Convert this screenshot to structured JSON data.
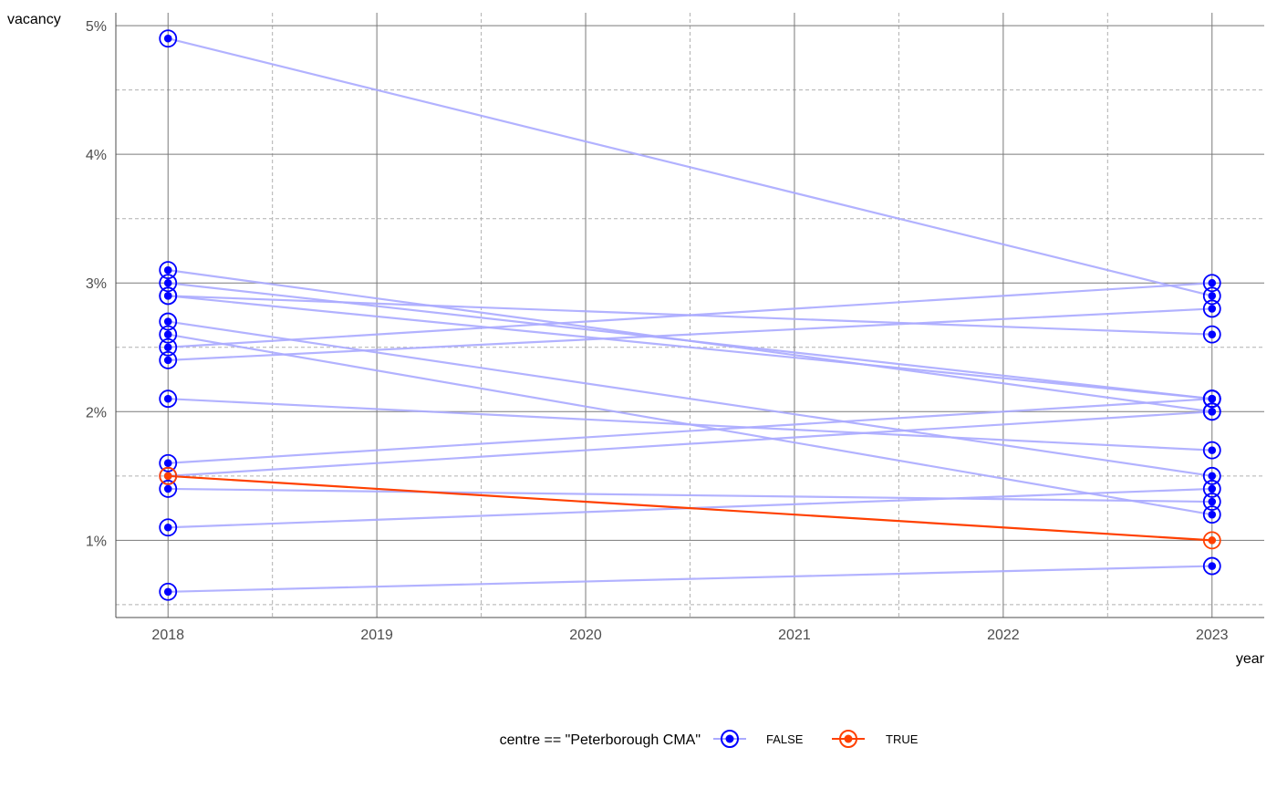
{
  "chart_data": {
    "type": "line",
    "xlabel": "year",
    "ylabel": "vacancy",
    "x_ticks": [
      "2018",
      "2019",
      "2020",
      "2021",
      "2022",
      "2023"
    ],
    "y_ticks": [
      "1%",
      "2%",
      "3%",
      "4%",
      "5%"
    ],
    "xlim": [
      2017.75,
      2023.25
    ],
    "ylim": [
      0.4,
      5.1
    ],
    "grid": true,
    "legend": {
      "position": "bottom",
      "title": "centre == \"Peterborough CMA\"",
      "entries": [
        {
          "label": "FALSE",
          "color": "#0000ff",
          "line_color": "#aaaaff"
        },
        {
          "label": "TRUE",
          "color": "#ff4000",
          "line_color": "#ff4000"
        }
      ]
    },
    "series": [
      {
        "group": "FALSE",
        "x": [
          2018,
          2023
        ],
        "values": [
          4.9,
          2.9
        ]
      },
      {
        "group": "FALSE",
        "x": [
          2018,
          2023
        ],
        "values": [
          3.1,
          2.0
        ]
      },
      {
        "group": "FALSE",
        "x": [
          2018,
          2023
        ],
        "values": [
          3.0,
          2.1
        ]
      },
      {
        "group": "FALSE",
        "x": [
          2018,
          2023
        ],
        "values": [
          2.9,
          2.6
        ]
      },
      {
        "group": "FALSE",
        "x": [
          2018,
          2023
        ],
        "values": [
          2.9,
          2.1
        ]
      },
      {
        "group": "FALSE",
        "x": [
          2018,
          2023
        ],
        "values": [
          2.7,
          1.5
        ]
      },
      {
        "group": "FALSE",
        "x": [
          2018,
          2023
        ],
        "values": [
          2.6,
          1.2
        ]
      },
      {
        "group": "FALSE",
        "x": [
          2018,
          2023
        ],
        "values": [
          2.5,
          3.0
        ]
      },
      {
        "group": "FALSE",
        "x": [
          2018,
          2023
        ],
        "values": [
          2.4,
          2.8
        ]
      },
      {
        "group": "FALSE",
        "x": [
          2018,
          2023
        ],
        "values": [
          2.1,
          1.7
        ]
      },
      {
        "group": "FALSE",
        "x": [
          2018,
          2023
        ],
        "values": [
          1.6,
          2.1
        ]
      },
      {
        "group": "FALSE",
        "x": [
          2018,
          2023
        ],
        "values": [
          1.5,
          2.0
        ]
      },
      {
        "group": "FALSE",
        "x": [
          2018,
          2023
        ],
        "values": [
          1.4,
          1.3
        ]
      },
      {
        "group": "FALSE",
        "x": [
          2018,
          2023
        ],
        "values": [
          1.1,
          1.4
        ]
      },
      {
        "group": "FALSE",
        "x": [
          2018,
          2023
        ],
        "values": [
          0.6,
          0.8
        ]
      },
      {
        "group": "TRUE",
        "x": [
          2018,
          2023
        ],
        "values": [
          1.5,
          1.0
        ]
      }
    ]
  }
}
